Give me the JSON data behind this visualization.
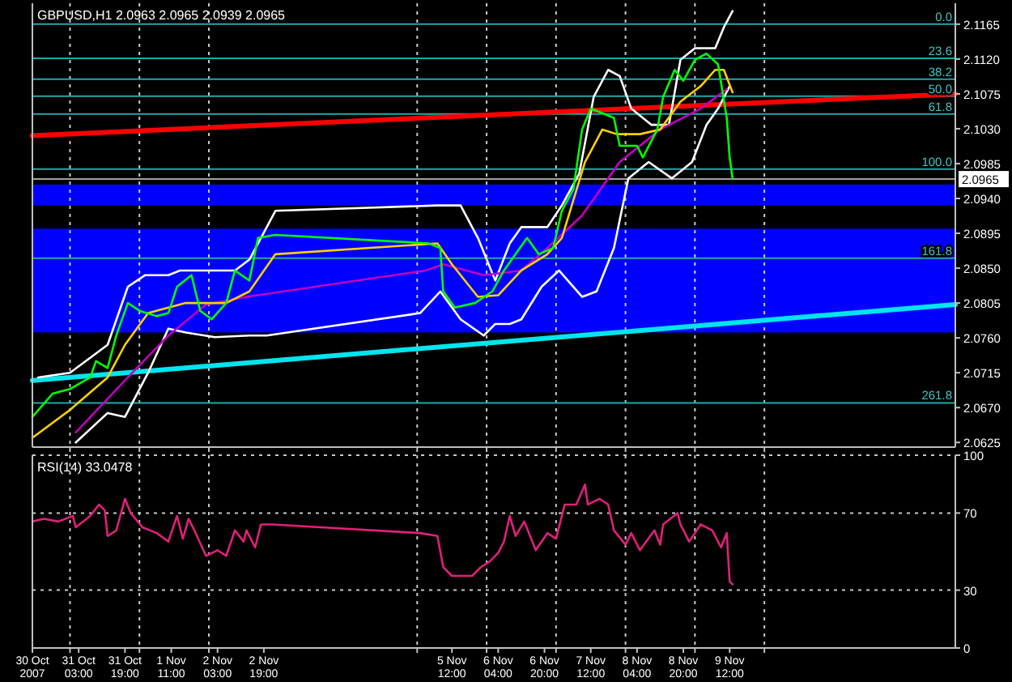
{
  "chart_data": [
    {
      "type": "line",
      "title": "GBPUSD,H1 2.0963 2.0965 2.0939 2.0965",
      "xlim": [
        "2007-10-30T11:00",
        "2007-11-12T18:00"
      ],
      "ylim": [
        2.0619,
        2.1192
      ],
      "xticks": [
        {
          "value": "2007-10-31T00:00",
          "label": null
        },
        {
          "value": "2007-11-01T00:00",
          "label": null
        },
        {
          "value": "2007-11-02T00:00",
          "label": null
        },
        {
          "value": "2007-11-05T00:00",
          "label": null
        },
        {
          "value": "2007-11-06T00:00",
          "label": null
        },
        {
          "value": "2007-11-07T00:00",
          "label": null
        },
        {
          "value": "2007-11-08T00:00",
          "label": null
        },
        {
          "value": "2007-11-09T00:00",
          "label": null
        },
        {
          "value": "2007-11-10T00:00",
          "label": null
        }
      ],
      "yticks": [
        {
          "value": 2.1165,
          "label": "2.1165"
        },
        {
          "value": 2.112,
          "label": "2.1120"
        },
        {
          "value": 2.1075,
          "label": "2.1075"
        },
        {
          "value": 2.103,
          "label": "2.1030"
        },
        {
          "value": 2.0985,
          "label": "2.0985"
        },
        {
          "value": 2.094,
          "label": "2.0940"
        },
        {
          "value": 2.0895,
          "label": "2.0895"
        },
        {
          "value": 2.085,
          "label": "2.0850"
        },
        {
          "value": 2.0805,
          "label": "2.0805"
        },
        {
          "value": 2.076,
          "label": "2.0760"
        },
        {
          "value": 2.0715,
          "label": "2.0715"
        },
        {
          "value": 2.067,
          "label": "2.0670"
        },
        {
          "value": 2.0625,
          "label": "2.0625"
        }
      ],
      "tick_labels": "y",
      "grid": "x",
      "bands": [
        {
          "axis": "y",
          "from": 2.0767,
          "to": 2.0901,
          "color": "#0000ff"
        },
        {
          "axis": "y",
          "from": 2.0931,
          "to": 2.0958,
          "color": "#0000ff"
        }
      ],
      "ref_lines": [
        {
          "axis": "y",
          "value": 2.1165,
          "color": "#20a8a8"
        },
        {
          "axis": "y",
          "value": 2.1121,
          "color": "#20a8a8"
        },
        {
          "axis": "y",
          "value": 2.1094,
          "color": "#20a8a8"
        },
        {
          "axis": "y",
          "value": 2.1072,
          "color": "#20a8a8"
        },
        {
          "axis": "y",
          "value": 2.1049,
          "color": "#20a8a8"
        },
        {
          "axis": "y",
          "value": 2.0978,
          "color": "#20a8a8"
        },
        {
          "axis": "y",
          "value": 2.0863,
          "color": "#20a8a8"
        },
        {
          "axis": "y",
          "value": 2.0676,
          "color": "#20a8a8"
        },
        {
          "axis": "y",
          "value": 2.0965,
          "label": "2.0965",
          "color": "#a0a0a0"
        }
      ],
      "annotations": [
        "0.0",
        "23.6",
        "38.2",
        "50.0",
        "61.8",
        "100.0",
        "161.8",
        "261.8"
      ],
      "series": [
        {
          "color": "#ff0000",
          "x": [
            "2007-10-30T11:00",
            "2007-11-12T18:00"
          ],
          "values": [
            2.1021,
            2.1075
          ]
        },
        {
          "color": "#00e5ee",
          "x": [
            "2007-10-30T11:00",
            "2007-11-12T18:00"
          ],
          "values": [
            2.0705,
            2.0803
          ]
        },
        {
          "color": "#ffffff",
          "x": [
            "2007-10-30T13:00",
            "2007-10-31T00:00",
            "2007-10-31T13:00",
            "2007-10-31T20:00",
            "2007-11-01T02:00",
            "2007-11-01T10:00",
            "2007-11-01T14:00",
            "2007-11-01T21:00",
            "2007-11-02T09:00",
            "2007-11-02T14:00",
            "2007-11-02T23:00",
            "2007-11-05T07:00",
            "2007-11-05T15:00",
            "2007-11-05T21:00",
            "2007-11-06T03:00",
            "2007-11-06T08:00",
            "2007-11-06T12:00",
            "2007-11-06T21:00",
            "2007-11-07T02:00",
            "2007-11-07T08:00",
            "2007-11-07T13:00",
            "2007-11-07T18:00",
            "2007-11-07T22:00",
            "2007-11-08T02:00",
            "2007-11-08T09:00",
            "2007-11-08T15:00",
            "2007-11-08T19:00",
            "2007-11-09T00:00",
            "2007-11-09T07:00",
            "2007-11-09T10:00",
            "2007-11-09T13:00"
          ],
          "values": [
            2.0709,
            2.0715,
            2.0751,
            2.0826,
            2.0841,
            2.0841,
            2.0847,
            2.0847,
            2.0847,
            2.0861,
            2.0924,
            2.0931,
            2.0931,
            2.0889,
            2.0834,
            2.0882,
            2.0903,
            2.0903,
            2.0931,
            2.0972,
            2.1071,
            2.1106,
            2.1098,
            2.1056,
            2.1035,
            2.1035,
            2.1119,
            2.1134,
            2.1134,
            2.1161,
            2.1182
          ]
        },
        {
          "color": "#ffffff",
          "x": [
            "2007-10-31T02:00",
            "2007-10-31T13:00",
            "2007-10-31T19:00",
            "2007-11-01T03:00",
            "2007-11-01T10:00",
            "2007-11-01T16:00",
            "2007-11-02T02:00",
            "2007-11-02T14:00",
            "2007-11-02T20:00",
            "2007-11-05T01:00",
            "2007-11-05T08:00",
            "2007-11-05T15:00",
            "2007-11-05T23:00",
            "2007-11-06T03:00",
            "2007-11-06T08:00",
            "2007-11-06T12:00",
            "2007-11-06T19:00",
            "2007-11-07T01:00",
            "2007-11-07T09:00",
            "2007-11-07T14:00",
            "2007-11-07T20:00",
            "2007-11-08T01:00",
            "2007-11-08T08:00",
            "2007-11-08T16:00",
            "2007-11-08T23:00",
            "2007-11-09T04:00",
            "2007-11-09T08:00",
            "2007-11-09T12:00"
          ],
          "values": [
            2.0625,
            2.0663,
            2.0658,
            2.0715,
            2.0772,
            2.0767,
            2.0761,
            2.0763,
            2.0763,
            2.0792,
            2.082,
            2.0784,
            2.0763,
            2.0778,
            2.0778,
            2.0784,
            2.0826,
            2.0847,
            2.0813,
            2.082,
            2.0876,
            2.0966,
            2.0987,
            2.0966,
            2.0987,
            2.1035,
            2.1056,
            2.1085
          ]
        },
        {
          "color": "#c000c0",
          "x": [
            "2007-10-31T02:00",
            "2007-10-31T20:00",
            "2007-11-01T10:00",
            "2007-11-01T23:00",
            "2007-11-02T13:00",
            "2007-11-05T03:00",
            "2007-11-05T09:00",
            "2007-11-05T23:00",
            "2007-11-06T12:00",
            "2007-11-06T21:00",
            "2007-11-07T09:00",
            "2007-11-07T22:00",
            "2007-11-08T12:00",
            "2007-11-09T02:00",
            "2007-11-09T11:00"
          ],
          "values": [
            2.0638,
            2.0709,
            2.0763,
            2.0803,
            2.0813,
            2.0847,
            2.0855,
            2.0841,
            2.0847,
            2.0876,
            2.0918,
            2.0987,
            2.1029,
            2.1056,
            2.1081
          ]
        },
        {
          "color": "#ffd000",
          "x": [
            "2007-10-30T11:00",
            "2007-10-31T00:00",
            "2007-10-31T13:00",
            "2007-10-31T19:00",
            "2007-11-01T03:00",
            "2007-11-01T16:00",
            "2007-11-02T06:00",
            "2007-11-02T14:00",
            "2007-11-02T23:00",
            "2007-11-05T07:00",
            "2007-11-05T12:00",
            "2007-11-05T21:00",
            "2007-11-06T04:00",
            "2007-11-06T12:00",
            "2007-11-06T21:00",
            "2007-11-07T02:00",
            "2007-11-07T10:00",
            "2007-11-07T16:00",
            "2007-11-07T21:00",
            "2007-11-08T05:00",
            "2007-11-08T12:00",
            "2007-11-08T19:00",
            "2007-11-09T02:00",
            "2007-11-09T07:00",
            "2007-11-09T10:00",
            "2007-11-09T13:00"
          ],
          "values": [
            2.0631,
            2.0667,
            2.0709,
            2.0751,
            2.0792,
            2.0805,
            2.0805,
            2.082,
            2.0868,
            2.0882,
            2.0855,
            2.0813,
            2.0815,
            2.0847,
            2.0868,
            2.0889,
            2.0987,
            2.1029,
            2.1023,
            2.1023,
            2.1029,
            2.1065,
            2.1085,
            2.1106,
            2.1106,
            2.1077
          ]
        },
        {
          "color": "#00ff00",
          "x": [
            "2007-10-30T11:00",
            "2007-10-30T18:00",
            "2007-10-31T00:00",
            "2007-10-31T07:00",
            "2007-10-31T09:00",
            "2007-10-31T13:00",
            "2007-10-31T16:00",
            "2007-10-31T20:00",
            "2007-11-01T00:00",
            "2007-11-01T06:00",
            "2007-11-01T10:00",
            "2007-11-01T13:00",
            "2007-11-01T18:00",
            "2007-11-01T21:00",
            "2007-11-02T01:00",
            "2007-11-02T06:00",
            "2007-11-02T09:00",
            "2007-11-02T14:00",
            "2007-11-02T17:00",
            "2007-11-02T23:00",
            "2007-11-05T04:00",
            "2007-11-05T08:00",
            "2007-11-05T09:00",
            "2007-11-05T13:00",
            "2007-11-05T20:00",
            "2007-11-06T02:00",
            "2007-11-06T06:00",
            "2007-11-06T10:00",
            "2007-11-06T14:00",
            "2007-11-06T18:00",
            "2007-11-06T23:00",
            "2007-11-07T02:00",
            "2007-11-07T06:00",
            "2007-11-07T09:00",
            "2007-11-07T12:00",
            "2007-11-07T16:00",
            "2007-11-07T20:00",
            "2007-11-07T22:00",
            "2007-11-08T04:00",
            "2007-11-08T06:00",
            "2007-11-08T11:00",
            "2007-11-08T13:00",
            "2007-11-08T17:00",
            "2007-11-08T20:00",
            "2007-11-09T00:00",
            "2007-11-09T04:00",
            "2007-11-09T08:00",
            "2007-11-09T11:00",
            "2007-11-09T12:00",
            "2007-11-09T13:00"
          ],
          "values": [
            2.0658,
            2.0688,
            2.0694,
            2.0709,
            2.073,
            2.0721,
            2.0763,
            2.0805,
            2.0795,
            2.0788,
            2.0792,
            2.0826,
            2.0841,
            2.0795,
            2.0784,
            2.0805,
            2.0847,
            2.0834,
            2.0889,
            2.0893,
            2.0882,
            2.0876,
            2.082,
            2.0799,
            2.0805,
            2.082,
            2.0847,
            2.0868,
            2.0889,
            2.0868,
            2.0876,
            2.0924,
            2.0952,
            2.1029,
            2.1056,
            2.105,
            2.1044,
            2.1008,
            2.1008,
            2.0993,
            2.1029,
            2.1071,
            2.1106,
            2.1092,
            2.1119,
            2.1127,
            2.1113,
            2.1044,
            2.0993,
            2.0966
          ]
        }
      ]
    },
    {
      "type": "line",
      "title": "RSI(14) 33.0478",
      "xlim": [
        "2007-10-30T11:00",
        "2007-11-12T18:00"
      ],
      "ylim": [
        0,
        100
      ],
      "yticks": [
        0,
        30,
        70,
        100
      ],
      "grid": true,
      "xticks": [
        {
          "value": "2007-10-30T11:00",
          "label": "30 Oct 2007"
        },
        {
          "value": "2007-10-31T00:00",
          "label": null
        },
        {
          "value": "2007-10-31T03:00",
          "label": "31 Oct 03:00"
        },
        {
          "value": "2007-10-31T19:00",
          "label": "31 Oct 19:00"
        },
        {
          "value": "2007-11-01T00:00",
          "label": null
        },
        {
          "value": "2007-11-01T11:00",
          "label": "1 Nov 11:00"
        },
        {
          "value": "2007-11-02T00:00",
          "label": null
        },
        {
          "value": "2007-11-02T03:00",
          "label": "2 Nov 03:00"
        },
        {
          "value": "2007-11-02T19:00",
          "label": "2 Nov 19:00"
        },
        {
          "value": "2007-11-05T00:00",
          "label": null
        },
        {
          "value": "2007-11-05T12:00",
          "label": "5 Nov 12:00"
        },
        {
          "value": "2007-11-06T00:00",
          "label": null
        },
        {
          "value": "2007-11-06T04:00",
          "label": "6 Nov 04:00"
        },
        {
          "value": "2007-11-06T20:00",
          "label": "6 Nov 20:00"
        },
        {
          "value": "2007-11-07T00:00",
          "label": null
        },
        {
          "value": "2007-11-07T12:00",
          "label": "7 Nov 12:00"
        },
        {
          "value": "2007-11-08T00:00",
          "label": null
        },
        {
          "value": "2007-11-08T04:00",
          "label": "8 Nov 04:00"
        },
        {
          "value": "2007-11-08T20:00",
          "label": "8 Nov 20:00"
        },
        {
          "value": "2007-11-09T00:00",
          "label": null
        },
        {
          "value": "2007-11-09T12:00",
          "label": "9 Nov 12:00"
        },
        {
          "value": "2007-11-10T00:00",
          "label": null
        }
      ],
      "series": [
        {
          "color": "#e0207a",
          "x": [
            "2007-10-30T11:00",
            "2007-10-30T15:00",
            "2007-10-30T20:00",
            "2007-10-31T01:00",
            "2007-10-31T02:00",
            "2007-10-31T07:00",
            "2007-10-31T10:00",
            "2007-10-31T12:00",
            "2007-10-31T13:00",
            "2007-10-31T16:00",
            "2007-10-31T19:00",
            "2007-10-31T21:00",
            "2007-11-01T01:00",
            "2007-11-01T06:00",
            "2007-11-01T10:00",
            "2007-11-01T13:00",
            "2007-11-01T15:00",
            "2007-11-01T17:00",
            "2007-11-01T19:00",
            "2007-11-01T23:00",
            "2007-11-02T03:00",
            "2007-11-02T06:00",
            "2007-11-02T09:00",
            "2007-11-02T12:00",
            "2007-11-02T13:00",
            "2007-11-02T16:00",
            "2007-11-02T18:00",
            "2007-11-02T22:00",
            "2007-11-05T01:00",
            "2007-11-05T07:00",
            "2007-11-05T09:00",
            "2007-11-05T12:00",
            "2007-11-05T19:00",
            "2007-11-05T22:00",
            "2007-11-06T01:00",
            "2007-11-06T04:00",
            "2007-11-06T06:00",
            "2007-11-06T08:00",
            "2007-11-06T10:00",
            "2007-11-06T13:00",
            "2007-11-06T17:00",
            "2007-11-06T21:00",
            "2007-11-07T00:00",
            "2007-11-07T03:00",
            "2007-11-07T07:00",
            "2007-11-07T10:00",
            "2007-11-07T11:00",
            "2007-11-07T15:00",
            "2007-11-07T18:00",
            "2007-11-07T20:00",
            "2007-11-08T00:00",
            "2007-11-08T02:00",
            "2007-11-08T05:00",
            "2007-11-08T10:00",
            "2007-11-08T12:00",
            "2007-11-08T13:00",
            "2007-11-08T18:00",
            "2007-11-08T19:00",
            "2007-11-08T22:00",
            "2007-11-09T02:00",
            "2007-11-09T06:00",
            "2007-11-09T09:00",
            "2007-11-09T11:00",
            "2007-11-09T12:00",
            "2007-11-09T13:00"
          ],
          "values": [
            65.6,
            67,
            65.6,
            68.5,
            62.6,
            68.5,
            74.4,
            71.5,
            58.1,
            61,
            77.4,
            70,
            62.6,
            59.6,
            55.2,
            68.5,
            56.7,
            67,
            61,
            47.8,
            50.7,
            47.8,
            61,
            55.2,
            61,
            52.2,
            64.1,
            64.1,
            59.6,
            58.1,
            41.9,
            37.4,
            37.4,
            41.9,
            44.8,
            49.3,
            55.2,
            68.5,
            58.1,
            65.6,
            50.7,
            59.6,
            56.7,
            74.4,
            74.4,
            84.8,
            74.4,
            77.4,
            74.4,
            61,
            53.6,
            59.6,
            50.7,
            61,
            53.6,
            64.1,
            70,
            64.1,
            55.2,
            64.1,
            61,
            52.2,
            59.6,
            34.4,
            33.0478
          ]
        }
      ]
    }
  ]
}
